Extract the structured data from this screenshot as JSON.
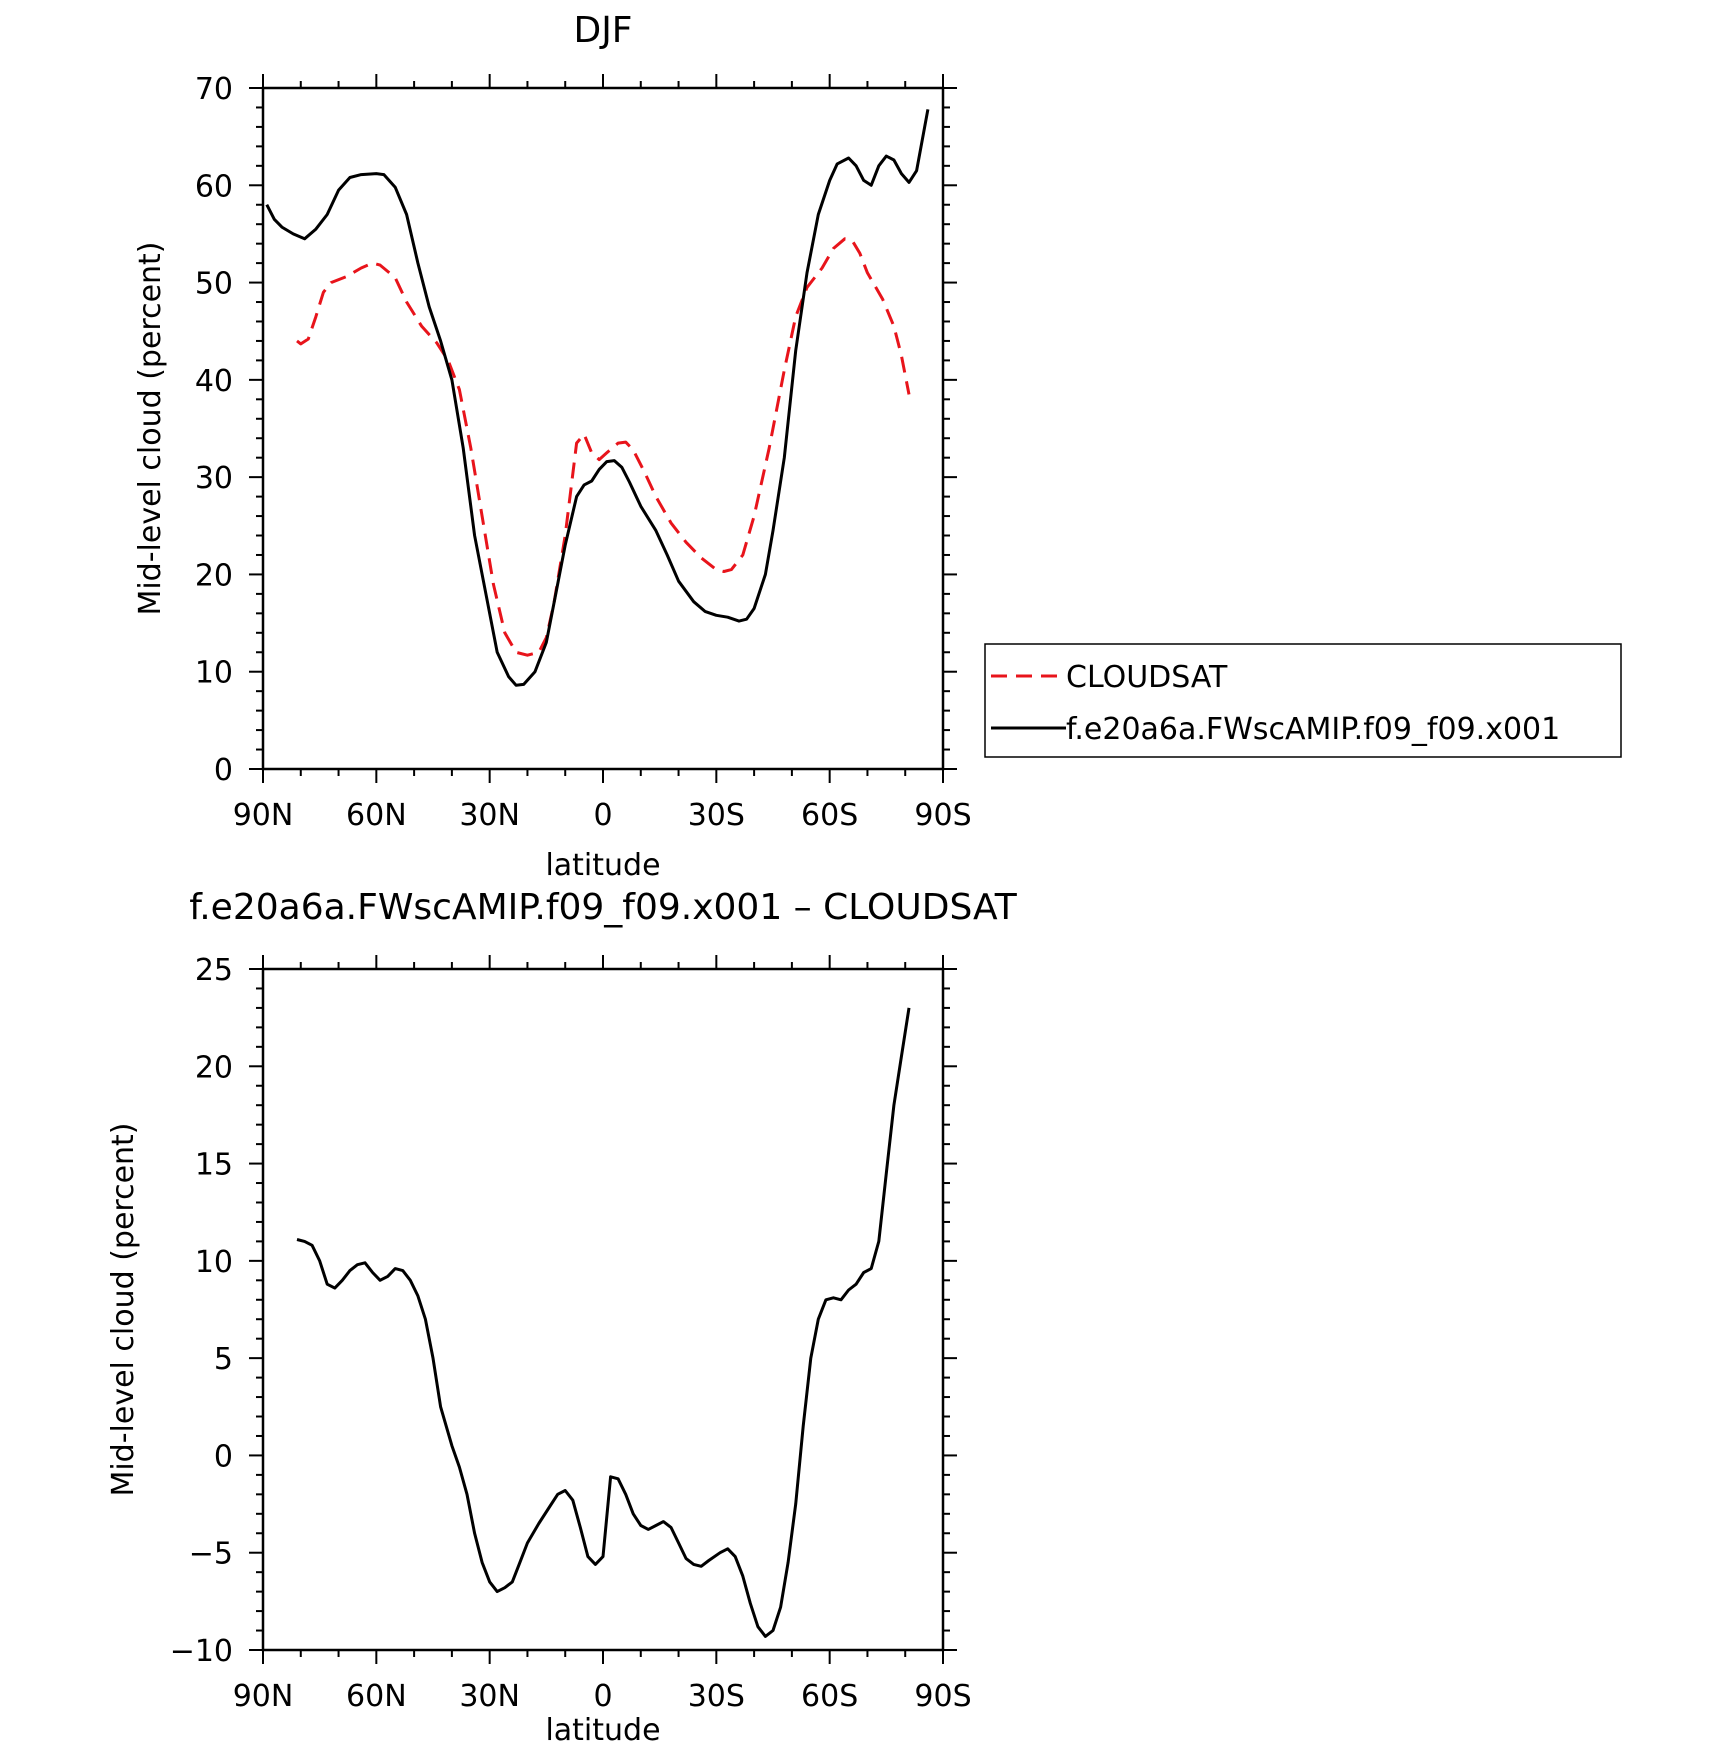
{
  "chart_data": [
    {
      "type": "line",
      "title": "DJF",
      "xlabel": "latitude",
      "ylabel": "Mid-level cloud (percent)",
      "xlim": [
        -90,
        90
      ],
      "ylim": [
        0,
        70
      ],
      "x_ticks": [
        -90,
        -60,
        -30,
        0,
        30,
        60,
        90
      ],
      "x_tick_labels": [
        "90N",
        "60N",
        "30N",
        "0",
        "30S",
        "60S",
        "90S"
      ],
      "y_ticks": [
        0,
        10,
        20,
        30,
        40,
        50,
        60,
        70
      ],
      "y_tick_labels": [
        "0",
        "10",
        "20",
        "30",
        "40",
        "50",
        "60",
        "70"
      ],
      "legend_position": "right",
      "series": [
        {
          "name": "CLOUDSAT",
          "color": "#e8141b",
          "dash": "dashed",
          "points": [
            [
              -81,
              44
            ],
            [
              -80,
              43.7
            ],
            [
              -78,
              44.2
            ],
            [
              -76,
              46.5
            ],
            [
              -74,
              49
            ],
            [
              -72,
              50
            ],
            [
              -68,
              50.6
            ],
            [
              -64,
              51.5
            ],
            [
              -61,
              52
            ],
            [
              -59,
              51.8
            ],
            [
              -55,
              50.5
            ],
            [
              -52,
              48
            ],
            [
              -48,
              45.5
            ],
            [
              -44,
              43.8
            ],
            [
              -41,
              42
            ],
            [
              -38,
              39
            ],
            [
              -35,
              33
            ],
            [
              -32,
              26
            ],
            [
              -29,
              19
            ],
            [
              -26,
              14
            ],
            [
              -23,
              12
            ],
            [
              -20,
              11.7
            ],
            [
              -17,
              12
            ],
            [
              -15,
              13.5
            ],
            [
              -13,
              17
            ],
            [
              -10,
              24
            ],
            [
              -7,
              33.5
            ],
            [
              -5,
              34.4
            ],
            [
              -3,
              32.5
            ],
            [
              -1,
              31.8
            ],
            [
              1,
              32.5
            ],
            [
              4,
              33.5
            ],
            [
              6,
              33.6
            ],
            [
              8,
              32.8
            ],
            [
              11,
              30.5
            ],
            [
              14,
              28
            ],
            [
              18,
              25.3
            ],
            [
              22,
              23.3
            ],
            [
              26,
              21.7
            ],
            [
              30,
              20.5
            ],
            [
              32,
              20.3
            ],
            [
              34,
              20.5
            ],
            [
              37,
              22
            ],
            [
              40,
              26
            ],
            [
              44,
              33
            ],
            [
              48,
              41
            ],
            [
              51,
              46.5
            ],
            [
              54,
              49.5
            ],
            [
              58,
              51.5
            ],
            [
              61,
              53.5
            ],
            [
              64,
              54.5
            ],
            [
              66,
              54.3
            ],
            [
              68,
              53
            ],
            [
              70,
              51
            ],
            [
              74,
              48.3
            ],
            [
              77,
              45.5
            ],
            [
              79,
              42.5
            ],
            [
              81,
              38.5
            ]
          ]
        },
        {
          "name": "f.e20a6a.FWscAMIP.f09_f09.x001",
          "color": "#000000",
          "dash": "solid",
          "points": [
            [
              -89,
              58
            ],
            [
              -87,
              56.5
            ],
            [
              -85,
              55.7
            ],
            [
              -82,
              55
            ],
            [
              -79,
              54.5
            ],
            [
              -76,
              55.5
            ],
            [
              -73,
              57
            ],
            [
              -70,
              59.5
            ],
            [
              -67,
              60.8
            ],
            [
              -64,
              61.1
            ],
            [
              -60,
              61.2
            ],
            [
              -58,
              61.1
            ],
            [
              -55,
              59.8
            ],
            [
              -52,
              57
            ],
            [
              -49,
              52
            ],
            [
              -46,
              47.5
            ],
            [
              -43,
              44
            ],
            [
              -40,
              40
            ],
            [
              -37,
              33
            ],
            [
              -34,
              24
            ],
            [
              -31,
              18
            ],
            [
              -28,
              12
            ],
            [
              -25,
              9.5
            ],
            [
              -23,
              8.6
            ],
            [
              -21,
              8.7
            ],
            [
              -18,
              10
            ],
            [
              -15,
              13
            ],
            [
              -13,
              17
            ],
            [
              -10,
              23
            ],
            [
              -7,
              28
            ],
            [
              -5,
              29.2
            ],
            [
              -3,
              29.6
            ],
            [
              -1,
              30.8
            ],
            [
              1,
              31.6
            ],
            [
              3,
              31.7
            ],
            [
              5,
              31
            ],
            [
              7,
              29.5
            ],
            [
              10,
              27
            ],
            [
              14,
              24.5
            ],
            [
              17,
              22
            ],
            [
              20,
              19.3
            ],
            [
              24,
              17.2
            ],
            [
              27,
              16.2
            ],
            [
              30,
              15.8
            ],
            [
              33,
              15.6
            ],
            [
              36,
              15.2
            ],
            [
              38,
              15.4
            ],
            [
              40,
              16.5
            ],
            [
              43,
              20
            ],
            [
              45,
              24.5
            ],
            [
              48,
              32
            ],
            [
              51,
              43
            ],
            [
              54,
              51
            ],
            [
              57,
              57
            ],
            [
              60,
              60.5
            ],
            [
              62,
              62.2
            ],
            [
              65,
              62.8
            ],
            [
              67,
              62
            ],
            [
              69,
              60.5
            ],
            [
              71,
              60
            ],
            [
              73,
              62
            ],
            [
              75,
              63
            ],
            [
              77,
              62.6
            ],
            [
              79,
              61.2
            ],
            [
              81,
              60.3
            ],
            [
              83,
              61.5
            ],
            [
              86,
              67.8
            ]
          ]
        }
      ]
    },
    {
      "type": "line",
      "title": "f.e20a6a.FWscAMIP.f09_f09.x001 – CLOUDSAT",
      "xlabel": "latitude",
      "ylabel": "Mid-level cloud (percent)",
      "xlim": [
        -90,
        90
      ],
      "ylim": [
        -10,
        25
      ],
      "x_ticks": [
        -90,
        -60,
        -30,
        0,
        30,
        60,
        90
      ],
      "x_tick_labels": [
        "90N",
        "60N",
        "30N",
        "0",
        "30S",
        "60S",
        "90S"
      ],
      "y_ticks": [
        -10,
        -5,
        0,
        5,
        10,
        15,
        20,
        25
      ],
      "y_tick_labels": [
        "−10",
        "−5",
        "0",
        "5",
        "10",
        "15",
        "20",
        "25"
      ],
      "series": [
        {
          "color": "#000000",
          "dash": "solid",
          "points": [
            [
              -81,
              11.1
            ],
            [
              -79,
              11
            ],
            [
              -77,
              10.8
            ],
            [
              -75,
              10
            ],
            [
              -73,
              8.8
            ],
            [
              -71,
              8.6
            ],
            [
              -69,
              9
            ],
            [
              -67,
              9.5
            ],
            [
              -65,
              9.8
            ],
            [
              -63,
              9.9
            ],
            [
              -61,
              9.4
            ],
            [
              -59,
              9
            ],
            [
              -57,
              9.2
            ],
            [
              -55,
              9.6
            ],
            [
              -53,
              9.5
            ],
            [
              -51,
              9
            ],
            [
              -49,
              8.2
            ],
            [
              -47,
              7
            ],
            [
              -45,
              5
            ],
            [
              -43,
              2.5
            ],
            [
              -40,
              0.5
            ],
            [
              -38,
              -0.6
            ],
            [
              -36,
              -2
            ],
            [
              -34,
              -4
            ],
            [
              -32,
              -5.5
            ],
            [
              -30,
              -6.5
            ],
            [
              -28,
              -7
            ],
            [
              -26,
              -6.8
            ],
            [
              -24,
              -6.5
            ],
            [
              -22,
              -5.5
            ],
            [
              -20,
              -4.5
            ],
            [
              -17,
              -3.5
            ],
            [
              -14,
              -2.6
            ],
            [
              -12,
              -2
            ],
            [
              -10,
              -1.8
            ],
            [
              -8,
              -2.3
            ],
            [
              -6,
              -3.7
            ],
            [
              -4,
              -5.2
            ],
            [
              -2,
              -5.6
            ],
            [
              0,
              -5.2
            ],
            [
              2,
              -1.1
            ],
            [
              4,
              -1.2
            ],
            [
              6,
              -2
            ],
            [
              8,
              -3
            ],
            [
              10,
              -3.6
            ],
            [
              12,
              -3.8
            ],
            [
              14,
              -3.6
            ],
            [
              16,
              -3.4
            ],
            [
              18,
              -3.7
            ],
            [
              20,
              -4.5
            ],
            [
              22,
              -5.3
            ],
            [
              24,
              -5.6
            ],
            [
              26,
              -5.7
            ],
            [
              28,
              -5.4
            ],
            [
              31,
              -5
            ],
            [
              33,
              -4.8
            ],
            [
              35,
              -5.2
            ],
            [
              37,
              -6.2
            ],
            [
              39,
              -7.6
            ],
            [
              41,
              -8.8
            ],
            [
              43,
              -9.3
            ],
            [
              45,
              -9
            ],
            [
              47,
              -7.8
            ],
            [
              49,
              -5.5
            ],
            [
              51,
              -2.5
            ],
            [
              53,
              1.5
            ],
            [
              55,
              5
            ],
            [
              57,
              7
            ],
            [
              59,
              8
            ],
            [
              61,
              8.1
            ],
            [
              63,
              8
            ],
            [
              65,
              8.5
            ],
            [
              67,
              8.8
            ],
            [
              69,
              9.4
            ],
            [
              71,
              9.6
            ],
            [
              73,
              11
            ],
            [
              75,
              14.5
            ],
            [
              77,
              18
            ],
            [
              79,
              20.5
            ],
            [
              81,
              23
            ]
          ]
        }
      ]
    }
  ]
}
